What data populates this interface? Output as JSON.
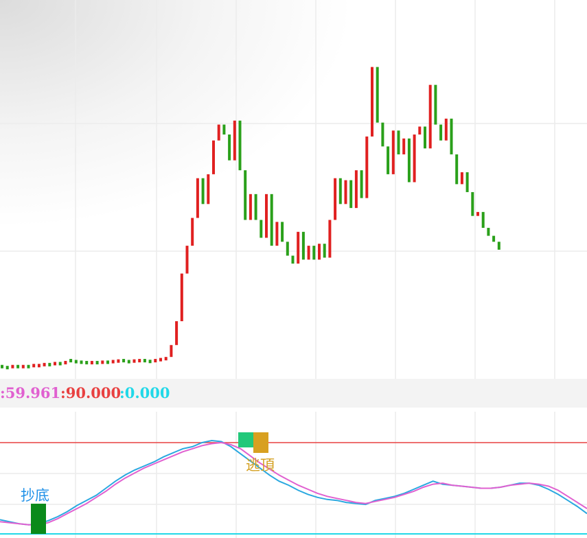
{
  "indicator_readout": {
    "value1": ":59.961",
    "value2": ":90.000",
    "value3": ":0.000",
    "color1": "#e060d0",
    "color2": "#e84040",
    "color3": "#20d8e8"
  },
  "signals": {
    "buy_label": "抄底",
    "sell_label": "逃頂",
    "buy_color": "#1e90e8",
    "sell_color": "#d4a020",
    "buy_block_color": "#0a8a1a",
    "sell_block_color_left": "#22c87a",
    "sell_block_color_right": "#d8a020"
  },
  "chart_data": [
    {
      "type": "bar",
      "style": "ohlc-bars",
      "up_color": "#e02020",
      "down_color": "#2aa01a",
      "bars": [
        {
          "o": 13.2,
          "c": 13.1
        },
        {
          "o": 13.15,
          "c": 13.1
        },
        {
          "o": 13.15,
          "c": 13.2
        },
        {
          "o": 13.2,
          "c": 13.15
        },
        {
          "o": 13.15,
          "c": 13.2
        },
        {
          "o": 13.2,
          "c": 13.18
        },
        {
          "o": 13.2,
          "c": 13.25
        },
        {
          "o": 13.25,
          "c": 13.25
        },
        {
          "o": 13.25,
          "c": 13.3
        },
        {
          "o": 13.3,
          "c": 13.28
        },
        {
          "o": 13.3,
          "c": 13.35
        },
        {
          "o": 13.35,
          "c": 13.32
        },
        {
          "o": 13.32,
          "c": 13.4
        },
        {
          "o": 13.5,
          "c": 13.45
        },
        {
          "o": 13.45,
          "c": 13.42
        },
        {
          "o": 13.42,
          "c": 13.4
        },
        {
          "o": 13.4,
          "c": 13.38
        },
        {
          "o": 13.38,
          "c": 13.4
        },
        {
          "o": 13.4,
          "c": 13.38
        },
        {
          "o": 13.38,
          "c": 13.42
        },
        {
          "o": 13.42,
          "c": 13.4
        },
        {
          "o": 13.4,
          "c": 13.45
        },
        {
          "o": 13.45,
          "c": 13.48
        },
        {
          "o": 13.5,
          "c": 13.45
        },
        {
          "o": 13.45,
          "c": 13.42
        },
        {
          "o": 13.42,
          "c": 13.48
        },
        {
          "o": 13.48,
          "c": 13.5
        },
        {
          "o": 13.5,
          "c": 13.46
        },
        {
          "o": 13.46,
          "c": 13.44
        },
        {
          "o": 13.44,
          "c": 13.5
        },
        {
          "o": 13.5,
          "c": 13.55
        },
        {
          "o": 13.55,
          "c": 13.6
        },
        {
          "o": 13.6,
          "c": 14.2
        },
        {
          "o": 14.2,
          "c": 15.4
        },
        {
          "o": 15.4,
          "c": 17.8
        },
        {
          "o": 17.8,
          "c": 19.2
        },
        {
          "o": 19.2,
          "c": 20.6
        },
        {
          "o": 20.6,
          "c": 22.6
        },
        {
          "o": 22.6,
          "c": 21.3
        },
        {
          "o": 21.3,
          "c": 22.8
        },
        {
          "o": 22.8,
          "c": 24.5
        },
        {
          "o": 24.5,
          "c": 25.3
        },
        {
          "o": 25.3,
          "c": 24.8
        },
        {
          "o": 24.8,
          "c": 23.5
        },
        {
          "o": 23.5,
          "c": 25.5
        },
        {
          "o": 25.5,
          "c": 23.0
        },
        {
          "o": 23.0,
          "c": 20.5
        },
        {
          "o": 20.5,
          "c": 21.8
        },
        {
          "o": 21.8,
          "c": 20.5
        },
        {
          "o": 20.5,
          "c": 19.6
        },
        {
          "o": 19.6,
          "c": 21.8
        },
        {
          "o": 21.8,
          "c": 19.2
        },
        {
          "o": 19.2,
          "c": 20.4
        },
        {
          "o": 20.4,
          "c": 19.4
        },
        {
          "o": 19.4,
          "c": 18.7
        },
        {
          "o": 18.7,
          "c": 18.3
        },
        {
          "o": 18.3,
          "c": 19.9
        },
        {
          "o": 19.9,
          "c": 18.5
        },
        {
          "o": 18.5,
          "c": 19.2
        },
        {
          "o": 19.2,
          "c": 18.5
        },
        {
          "o": 18.5,
          "c": 19.3
        },
        {
          "o": 19.3,
          "c": 18.6
        },
        {
          "o": 18.6,
          "c": 20.5
        },
        {
          "o": 20.5,
          "c": 22.6
        },
        {
          "o": 22.6,
          "c": 21.3
        },
        {
          "o": 21.3,
          "c": 22.5
        },
        {
          "o": 22.5,
          "c": 21.1
        },
        {
          "o": 21.1,
          "c": 23.0
        },
        {
          "o": 23.0,
          "c": 21.6
        },
        {
          "o": 21.6,
          "c": 24.7
        },
        {
          "o": 24.7,
          "c": 28.2
        },
        {
          "o": 28.2,
          "c": 25.4
        },
        {
          "o": 25.4,
          "c": 24.2
        },
        {
          "o": 24.2,
          "c": 22.8
        },
        {
          "o": 22.8,
          "c": 25.0
        },
        {
          "o": 25.0,
          "c": 23.8
        },
        {
          "o": 23.8,
          "c": 24.6
        },
        {
          "o": 24.6,
          "c": 22.4
        },
        {
          "o": 22.4,
          "c": 24.8
        },
        {
          "o": 24.8,
          "c": 25.2
        },
        {
          "o": 25.2,
          "c": 24.1
        },
        {
          "o": 24.1,
          "c": 27.3
        },
        {
          "o": 27.3,
          "c": 25.3
        },
        {
          "o": 25.3,
          "c": 24.5
        },
        {
          "o": 24.5,
          "c": 25.6
        },
        {
          "o": 25.6,
          "c": 23.8
        },
        {
          "o": 23.8,
          "c": 22.3
        },
        {
          "o": 22.3,
          "c": 22.9
        },
        {
          "o": 22.9,
          "c": 21.9
        },
        {
          "o": 21.9,
          "c": 20.7
        },
        {
          "o": 20.7,
          "c": 20.9
        },
        {
          "o": 20.9,
          "c": 20.1
        },
        {
          "o": 20.1,
          "c": 19.7
        },
        {
          "o": 19.7,
          "c": 19.4
        },
        {
          "o": 19.4,
          "c": 19.0
        }
      ]
    },
    {
      "type": "line",
      "series": [
        {
          "color": "#2aa8e0",
          "values": [
            14,
            12,
            10,
            9,
            10,
            13,
            17,
            22,
            28,
            33,
            38,
            45,
            52,
            58,
            63,
            67,
            71,
            76,
            80,
            84,
            86,
            90,
            92,
            91,
            86,
            79,
            72,
            65,
            58,
            52,
            48,
            43,
            39,
            36,
            34,
            33,
            31,
            30,
            29,
            33,
            35,
            37,
            40,
            44,
            48,
            52,
            49,
            48,
            47,
            46,
            45,
            45,
            46,
            48,
            50,
            50,
            48,
            44,
            39,
            33,
            27,
            20
          ]
        },
        {
          "color": "#e060d0",
          "values": [
            12,
            11,
            10,
            9,
            9,
            11,
            15,
            20,
            25,
            30,
            36,
            42,
            49,
            55,
            60,
            65,
            69,
            73,
            77,
            81,
            84,
            87,
            89,
            90,
            88,
            84,
            77,
            70,
            64,
            58,
            53,
            48,
            44,
            40,
            37,
            35,
            33,
            31,
            30,
            32,
            34,
            36,
            39,
            42,
            46,
            49,
            50,
            48,
            47,
            46,
            45,
            45,
            46,
            48,
            49,
            50,
            49,
            47,
            43,
            37,
            31,
            25
          ]
        }
      ]
    }
  ]
}
